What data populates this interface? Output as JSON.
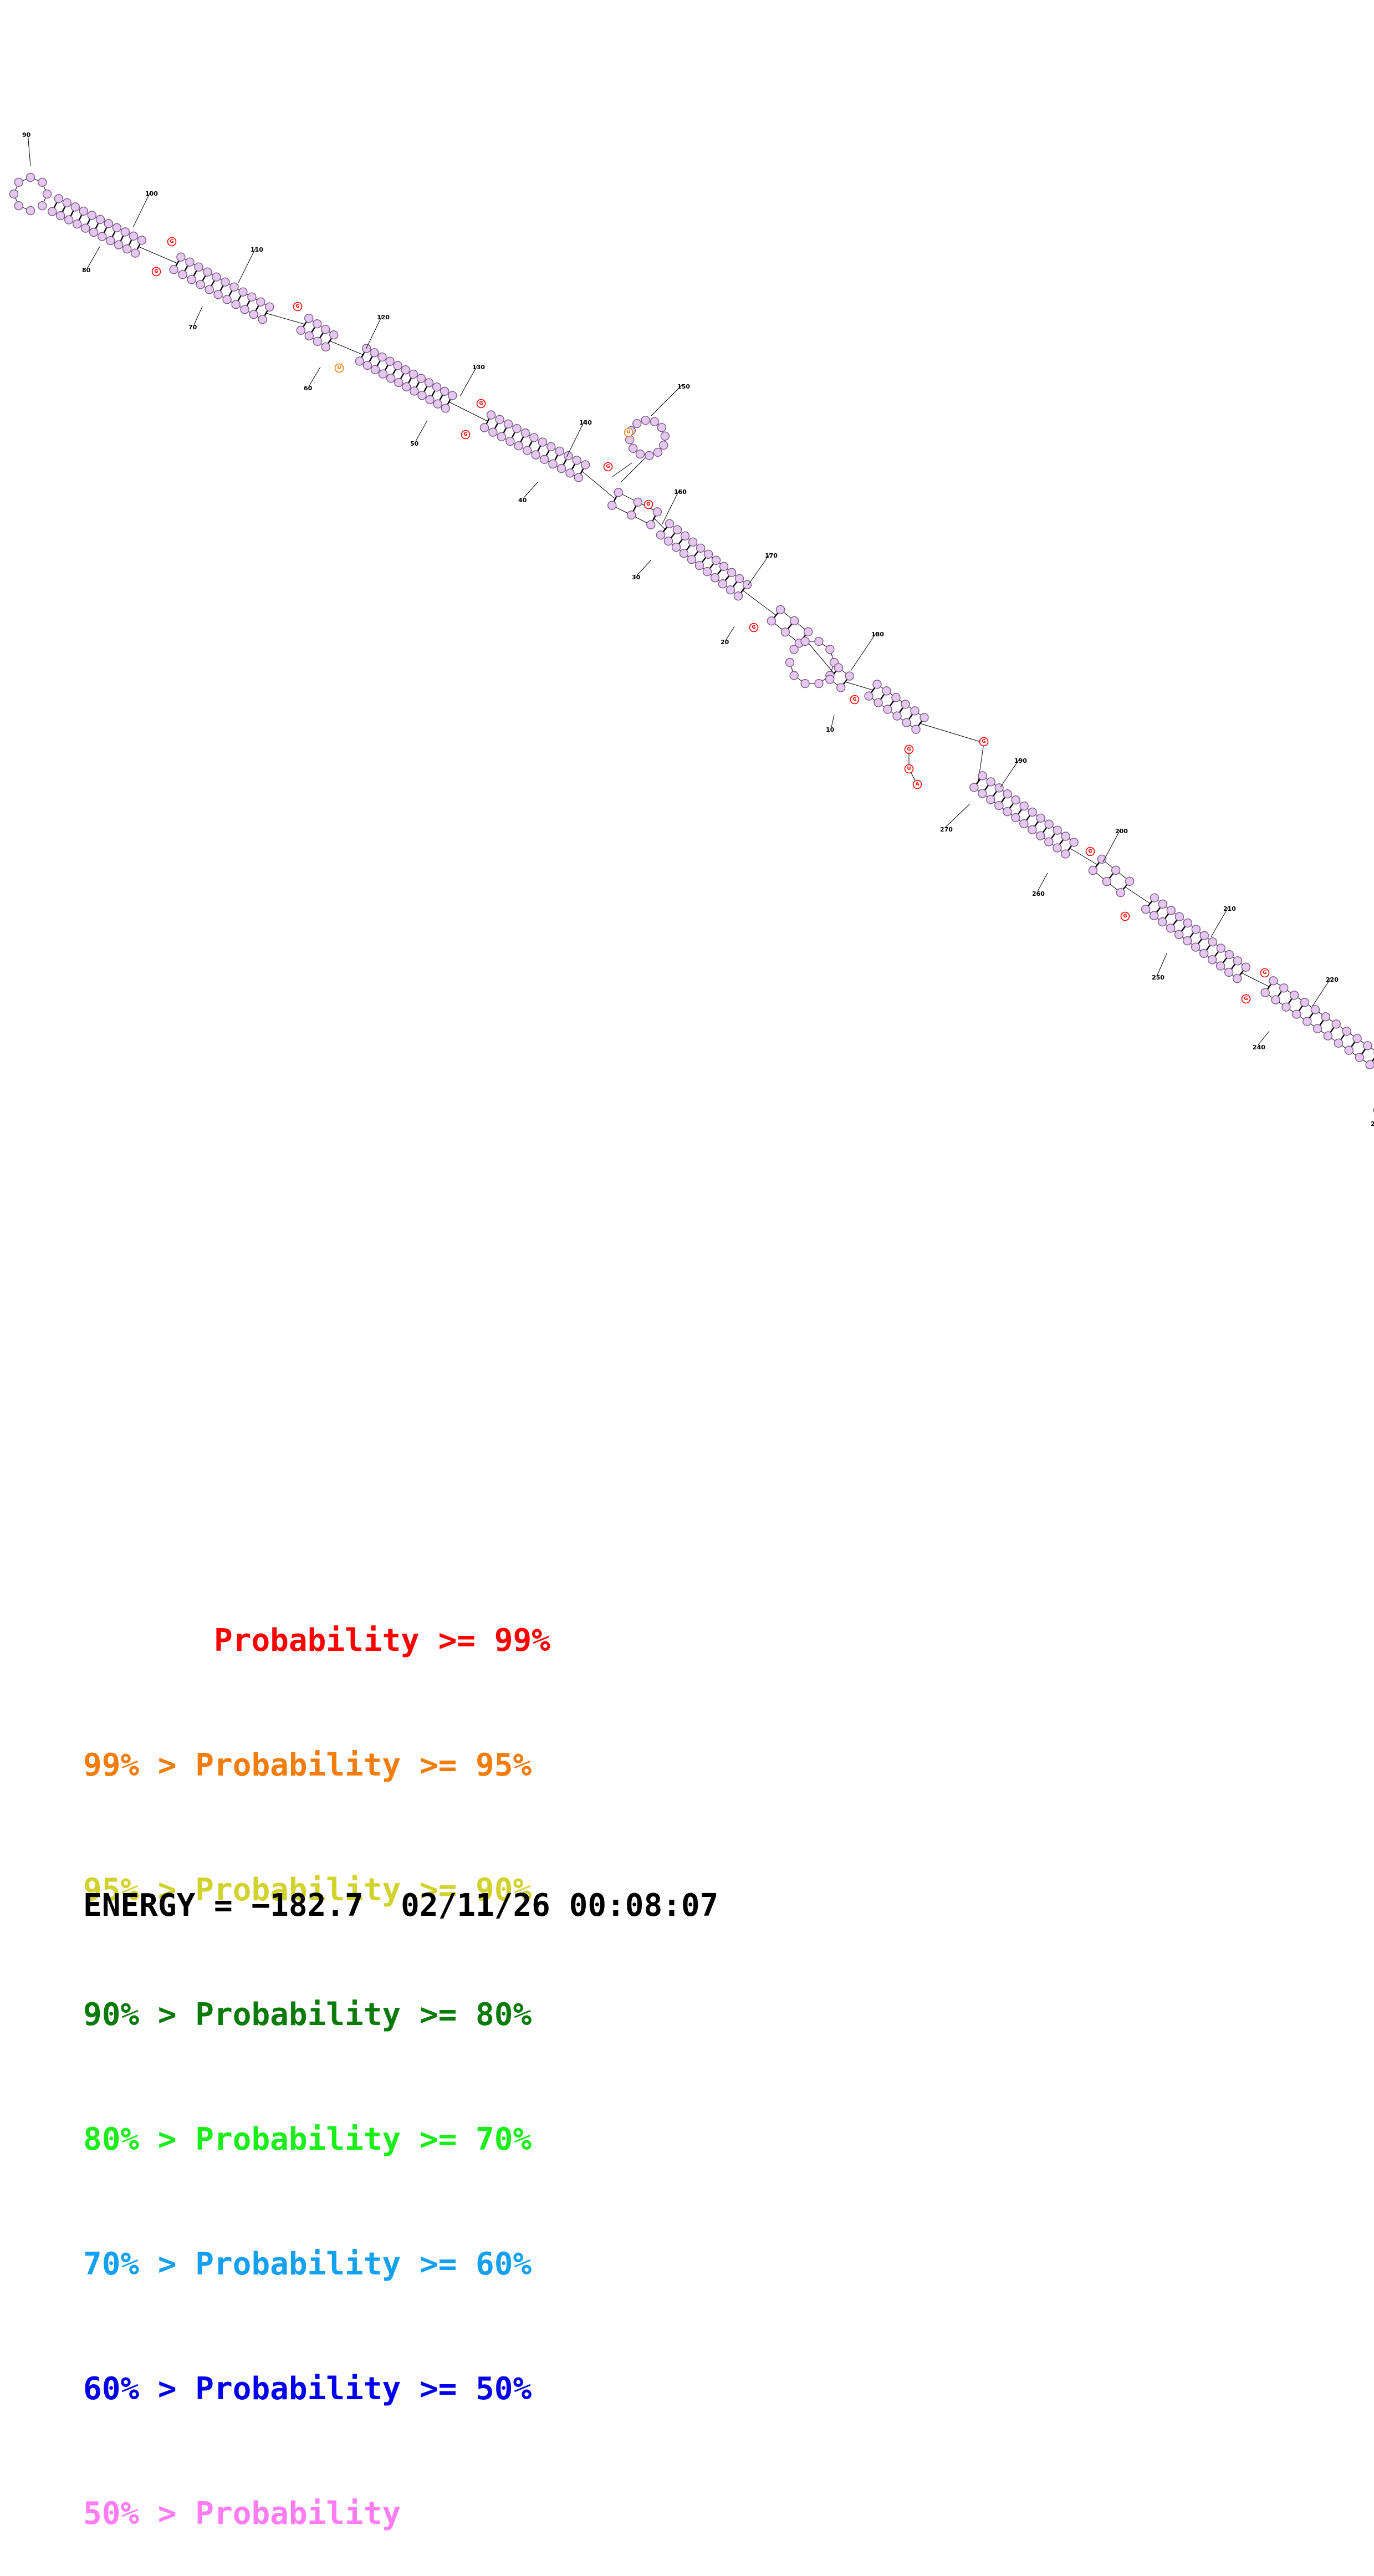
{
  "colors": {
    "base_fill": "#e6c7f0",
    "base_stroke": "#7a5a88",
    "backbone": "#000000",
    "red": "#ff0000",
    "orange": "#f27c0c",
    "yellow": "#d2d22e",
    "dark_green": "#0a7a0a",
    "green": "#1aee1a",
    "cyan": "#14a0f0",
    "blue": "#0000ee",
    "pink": "#ff7cf2"
  },
  "position_labels": [
    "10",
    "20",
    "30",
    "40",
    "50",
    "60",
    "70",
    "80",
    "90",
    "100",
    "110",
    "120",
    "130",
    "140",
    "150",
    "160",
    "170",
    "180",
    "190",
    "200",
    "210",
    "220",
    "240",
    "250",
    "260",
    "270",
    "2"
  ],
  "highlighted_bases": [
    {
      "letter": "G",
      "color": "red"
    },
    {
      "letter": "G",
      "color": "red"
    },
    {
      "letter": "G",
      "color": "red"
    },
    {
      "letter": "G",
      "color": "red"
    },
    {
      "letter": "G",
      "color": "red"
    },
    {
      "letter": "G",
      "color": "red"
    },
    {
      "letter": "G",
      "color": "red"
    },
    {
      "letter": "G",
      "color": "red"
    },
    {
      "letter": "G",
      "color": "red"
    },
    {
      "letter": "G",
      "color": "red"
    },
    {
      "letter": "U",
      "color": "red"
    },
    {
      "letter": "A",
      "color": "red"
    },
    {
      "letter": "G",
      "color": "red"
    },
    {
      "letter": "G",
      "color": "red"
    },
    {
      "letter": "G",
      "color": "red"
    },
    {
      "letter": "G",
      "color": "red"
    },
    {
      "letter": "G",
      "color": "red"
    },
    {
      "letter": "U",
      "color": "orange"
    },
    {
      "letter": "U",
      "color": "orange"
    }
  ],
  "legend": [
    {
      "prefix": "       ",
      "text": "Probability >= 99%",
      "color": "red"
    },
    {
      "prefix": "99% > ",
      "text": "Probability >= 95%",
      "color": "orange"
    },
    {
      "prefix": "95% > ",
      "text": "Probability >= 90%",
      "color": "yellow"
    },
    {
      "prefix": "90% > ",
      "text": "Probability >= 80%",
      "color": "dark_green"
    },
    {
      "prefix": "80% > ",
      "text": "Probability >= 70%",
      "color": "green"
    },
    {
      "prefix": "70% > ",
      "text": "Probability >= 60%",
      "color": "cyan"
    },
    {
      "prefix": "60% > ",
      "text": "Probability >= 50%",
      "color": "blue"
    },
    {
      "prefix": "50% > ",
      "text": "Probability",
      "color": "pink"
    }
  ],
  "footer": {
    "energy_label": "ENERGY = ",
    "energy_value": "−182.7",
    "timestamp": "02/11/26 00:08:07"
  }
}
